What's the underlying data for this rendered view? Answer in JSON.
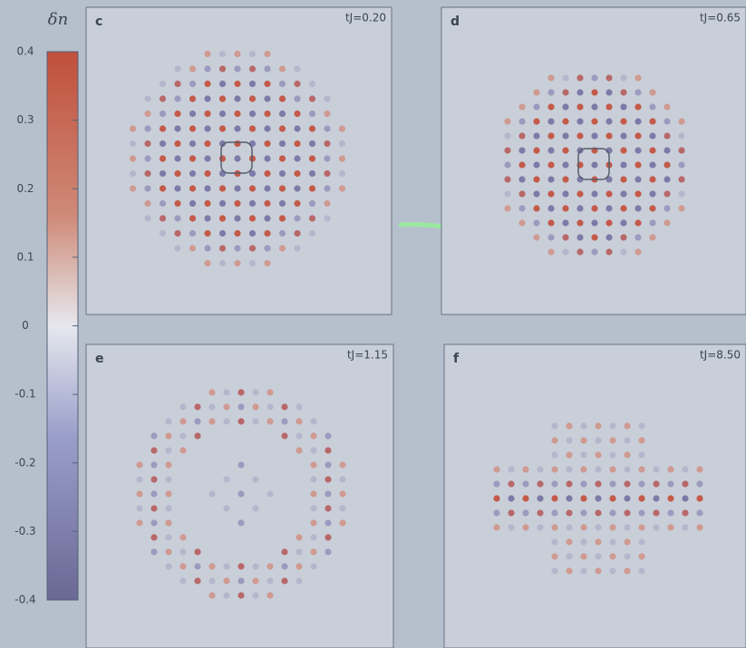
{
  "chart_data": {
    "type": "colormap",
    "colorbar": {
      "label": "δn",
      "ylim": [
        -0.4,
        0.4
      ],
      "yticks": [
        0.4,
        0.3,
        0.2,
        0.1,
        0,
        -0.1,
        -0.2,
        -0.3,
        -0.4
      ]
    },
    "panels": [
      {
        "letter": "c",
        "title": "tJ=0.20"
      },
      {
        "letter": "d",
        "title": "tJ=0.65"
      },
      {
        "letter": "e",
        "title": "tJ=1.15"
      },
      {
        "letter": "f",
        "title": "tJ=8.50"
      }
    ]
  }
}
